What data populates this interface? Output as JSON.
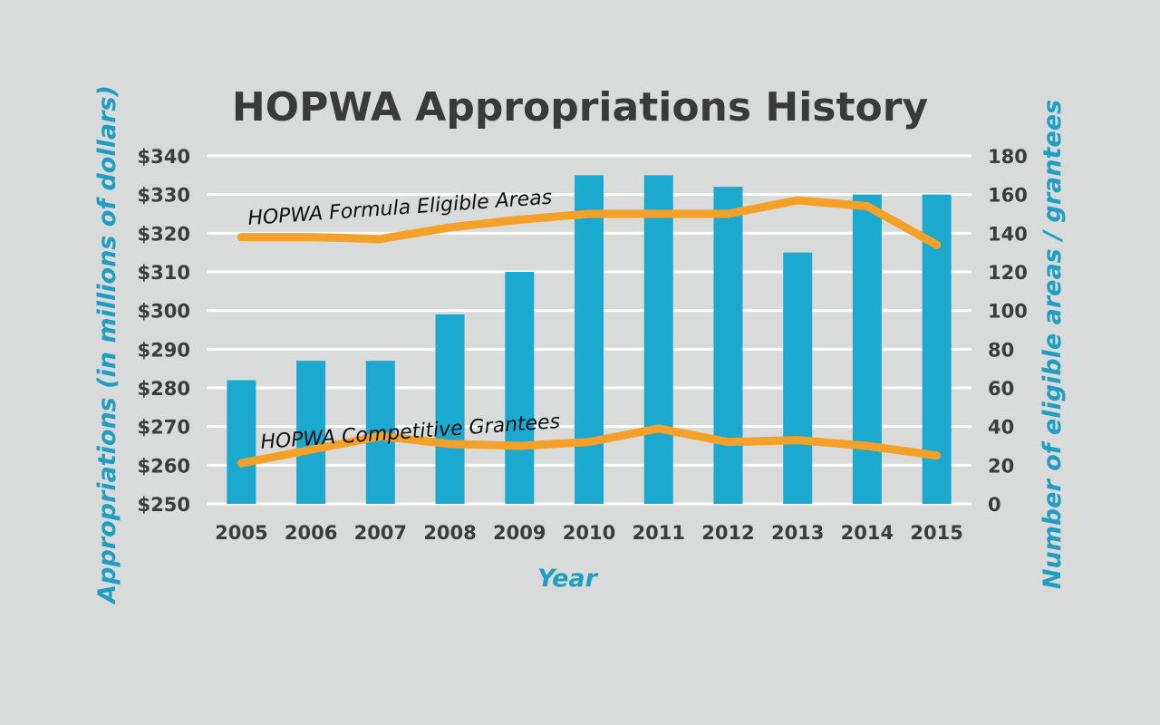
{
  "chart_data": {
    "type": "bar",
    "title": "HOPWA Appropriations History",
    "xlabel": "Year",
    "ylabel": "Appropriations (in millions of dollars)",
    "y2label": "Number of eligible areas / grantees",
    "categories": [
      "2005",
      "2006",
      "2007",
      "2008",
      "2009",
      "2010",
      "2011",
      "2012",
      "2013",
      "2014",
      "2015"
    ],
    "ylim": [
      250,
      340
    ],
    "yticks": [
      "$250",
      "$260",
      "$270",
      "$280",
      "$290",
      "$300",
      "$310",
      "$320",
      "$330",
      "$340"
    ],
    "y2lim": [
      0,
      180
    ],
    "y2ticks": [
      "0",
      "20",
      "40",
      "60",
      "80",
      "100",
      "120",
      "140",
      "160",
      "180"
    ],
    "grid": true,
    "series": [
      {
        "kind": "bar",
        "axis": "left",
        "values": [
          282,
          287,
          287,
          299,
          310,
          335,
          335,
          332,
          315,
          330,
          330
        ]
      },
      {
        "kind": "line",
        "axis": "right",
        "name": "HOPWA Formula Eligible Areas",
        "values": [
          138,
          138,
          137,
          143,
          147,
          150,
          150,
          150,
          157,
          154,
          134
        ]
      },
      {
        "kind": "line",
        "axis": "right",
        "name": "HOPWA Competitive Grantees",
        "values": [
          21,
          28,
          35,
          31,
          30,
          32,
          39,
          32,
          33,
          30,
          25
        ]
      }
    ],
    "colors": {
      "bars": "#1ca9d0",
      "lines": "#f5a027",
      "axis_label": "#1f9dc2",
      "grid": "#ffffff"
    }
  }
}
